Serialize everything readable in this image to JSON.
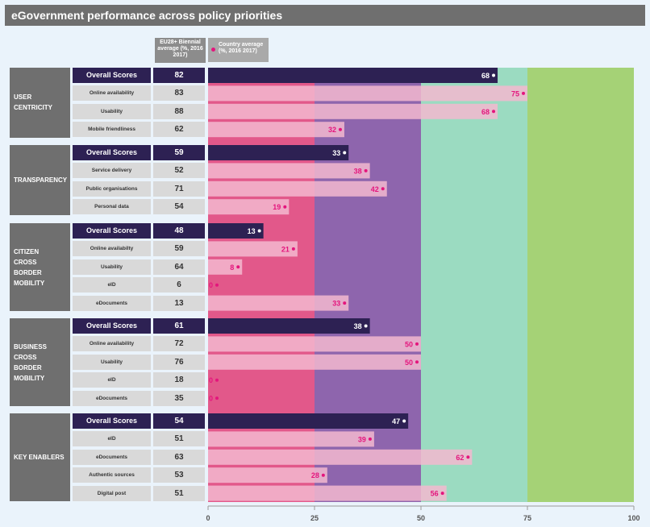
{
  "title": "eGovernment performance across policy priorities",
  "legend": {
    "eu_label": "EU28+ Biennial average (%, 2016 2017)",
    "country_label": "Country average (%, 2016 2017)"
  },
  "colors": {
    "band_0_25": "#e2588a",
    "band_25_50": "#8e65ad",
    "band_50_75": "#9bdbc1",
    "band_75_100": "#a5d276",
    "overall_bar": "#2d2153",
    "sub_bar": "#f3b8cf",
    "dot": "#e4157d"
  },
  "chart_data": {
    "type": "bar",
    "orientation": "horizontal",
    "xlim": [
      0,
      100
    ],
    "xticks": [
      0,
      25,
      50,
      75,
      100
    ],
    "groups": [
      {
        "name": "USER\nCENTRICITY",
        "rows": [
          {
            "label": "Overall Scores",
            "eu": 82,
            "country": 68,
            "overall": true
          },
          {
            "label": "Online availability",
            "eu": 83,
            "country": 75
          },
          {
            "label": "Usability",
            "eu": 88,
            "country": 68
          },
          {
            "label": "Mobile friendliness",
            "eu": 62,
            "country": 32
          }
        ]
      },
      {
        "name": "TRANSPARENCY",
        "rows": [
          {
            "label": "Overall Scores",
            "eu": 59,
            "country": 33,
            "overall": true
          },
          {
            "label": "Service delivery",
            "eu": 52,
            "country": 38
          },
          {
            "label": "Public organisations",
            "eu": 71,
            "country": 42
          },
          {
            "label": "Personal data",
            "eu": 54,
            "country": 19
          }
        ]
      },
      {
        "name": "CITIZEN\nCROSS\nBORDER\nMOBILITY",
        "rows": [
          {
            "label": "Overall Scores",
            "eu": 48,
            "country": 13,
            "overall": true
          },
          {
            "label": "Online availabilty",
            "eu": 59,
            "country": 21
          },
          {
            "label": "Usability",
            "eu": 64,
            "country": 8
          },
          {
            "label": "eID",
            "eu": 6,
            "country": 0
          },
          {
            "label": "eDocuments",
            "eu": 13,
            "country": 33
          }
        ]
      },
      {
        "name": "BUSINESS\nCROSS\nBORDER\nMOBILITY",
        "rows": [
          {
            "label": "Overall Scores",
            "eu": 61,
            "country": 38,
            "overall": true
          },
          {
            "label": "Online availability",
            "eu": 72,
            "country": 50
          },
          {
            "label": "Usability",
            "eu": 76,
            "country": 50
          },
          {
            "label": "eID",
            "eu": 18,
            "country": 0
          },
          {
            "label": "eDocuments",
            "eu": 35,
            "country": 0
          }
        ]
      },
      {
        "name": "KEY ENABLERS",
        "rows": [
          {
            "label": "Overall Scores",
            "eu": 54,
            "country": 47,
            "overall": true
          },
          {
            "label": "eID",
            "eu": 51,
            "country": 39
          },
          {
            "label": "eDocuments",
            "eu": 63,
            "country": 62
          },
          {
            "label": "Authentic sources",
            "eu": 53,
            "country": 28
          },
          {
            "label": "Digital post",
            "eu": 51,
            "country": 56
          }
        ]
      }
    ]
  }
}
